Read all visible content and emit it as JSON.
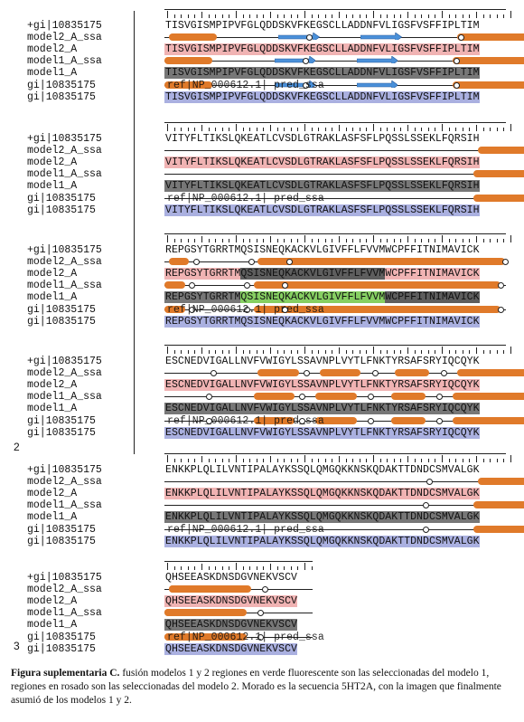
{
  "labels": {
    "gi_plus": "+gi|10835175",
    "model2_ssa": "model2_A_ssa",
    "model2": "model2_A",
    "model1_ssa": "model1_A_ssa",
    "model1": "model1_A",
    "gi_pred": "gi|10835175",
    "gi": "gi|10835175"
  },
  "blocks": [
    {
      "seq": "TISVGISMPIPVFGLQDDSKVFKEGSCLLADDNFVLIGSFVSFFIPLTIM",
      "pred_overlay": "ref|NP_000612.1| pred_ssa",
      "page": ""
    },
    {
      "seq": "VITYFLTIKSLQKEATLCVSDLGTRAKLASFSFLPQSSLSSEKLFQRSIH",
      "pred_overlay": "ref|NP_000612.1| pred_ssa",
      "page": ""
    },
    {
      "seq": "REPGSYTGRRTMQSISNEQKACKVLGIVFFLFVVMWCPFFITNIMAVICK",
      "model1_seg": [
        "REPGSYTGRRTM",
        "QSISNEQKACKVLGIVFFLFVVM",
        "WCPFFITNIMAVICK"
      ],
      "model2_seg": [
        "REPGSYTGRRTM",
        "QSISNEQKACKVLGIVFFLFVVM",
        "WCPFFITNIMAVICK"
      ],
      "pred_overlay": "ref|NP_000612.1| pred_ssa",
      "page": ""
    },
    {
      "seq": "ESCNEDVIGALLNVFVWIGYLSSAVNPLVYTLFNKTYRSAFSRYIQCQYK",
      "pred_overlay": "ref|NP_000612.1| pred_ssa",
      "page": "2"
    },
    {
      "seq": "ENKKPLQLILVNTIPALAYKSSQLQMGQKKNSKQDAKTTDNDCSMVALGK",
      "pred_overlay": "ref|NP_000612.1| pred_ssa",
      "page": ""
    },
    {
      "seq": "QHSEEASKDNSDGVNEKVSCV",
      "pred_overlay": "ref|NP_000612.1| pred_ssa",
      "page": "3"
    }
  ],
  "caption": {
    "bold": "Figura suplementaria C.",
    "text": " fusión modelos 1 y 2 regiones en verde fluorescente son las seleccionadas del modelo 1, regiones en rosado son las seleccionadas del modelo 2. Morado es la secuencia 5HT2A, con la imagen que finalmente asumió de los modelos 1 y 2."
  },
  "colors": {
    "helix": "#e07a2a",
    "strand": "#4a90d9",
    "model2_bg": "#f0b3b3",
    "model1_bg": "#777777",
    "gi_bg": "#aab0e0",
    "fusion_green": "#86cf62"
  }
}
